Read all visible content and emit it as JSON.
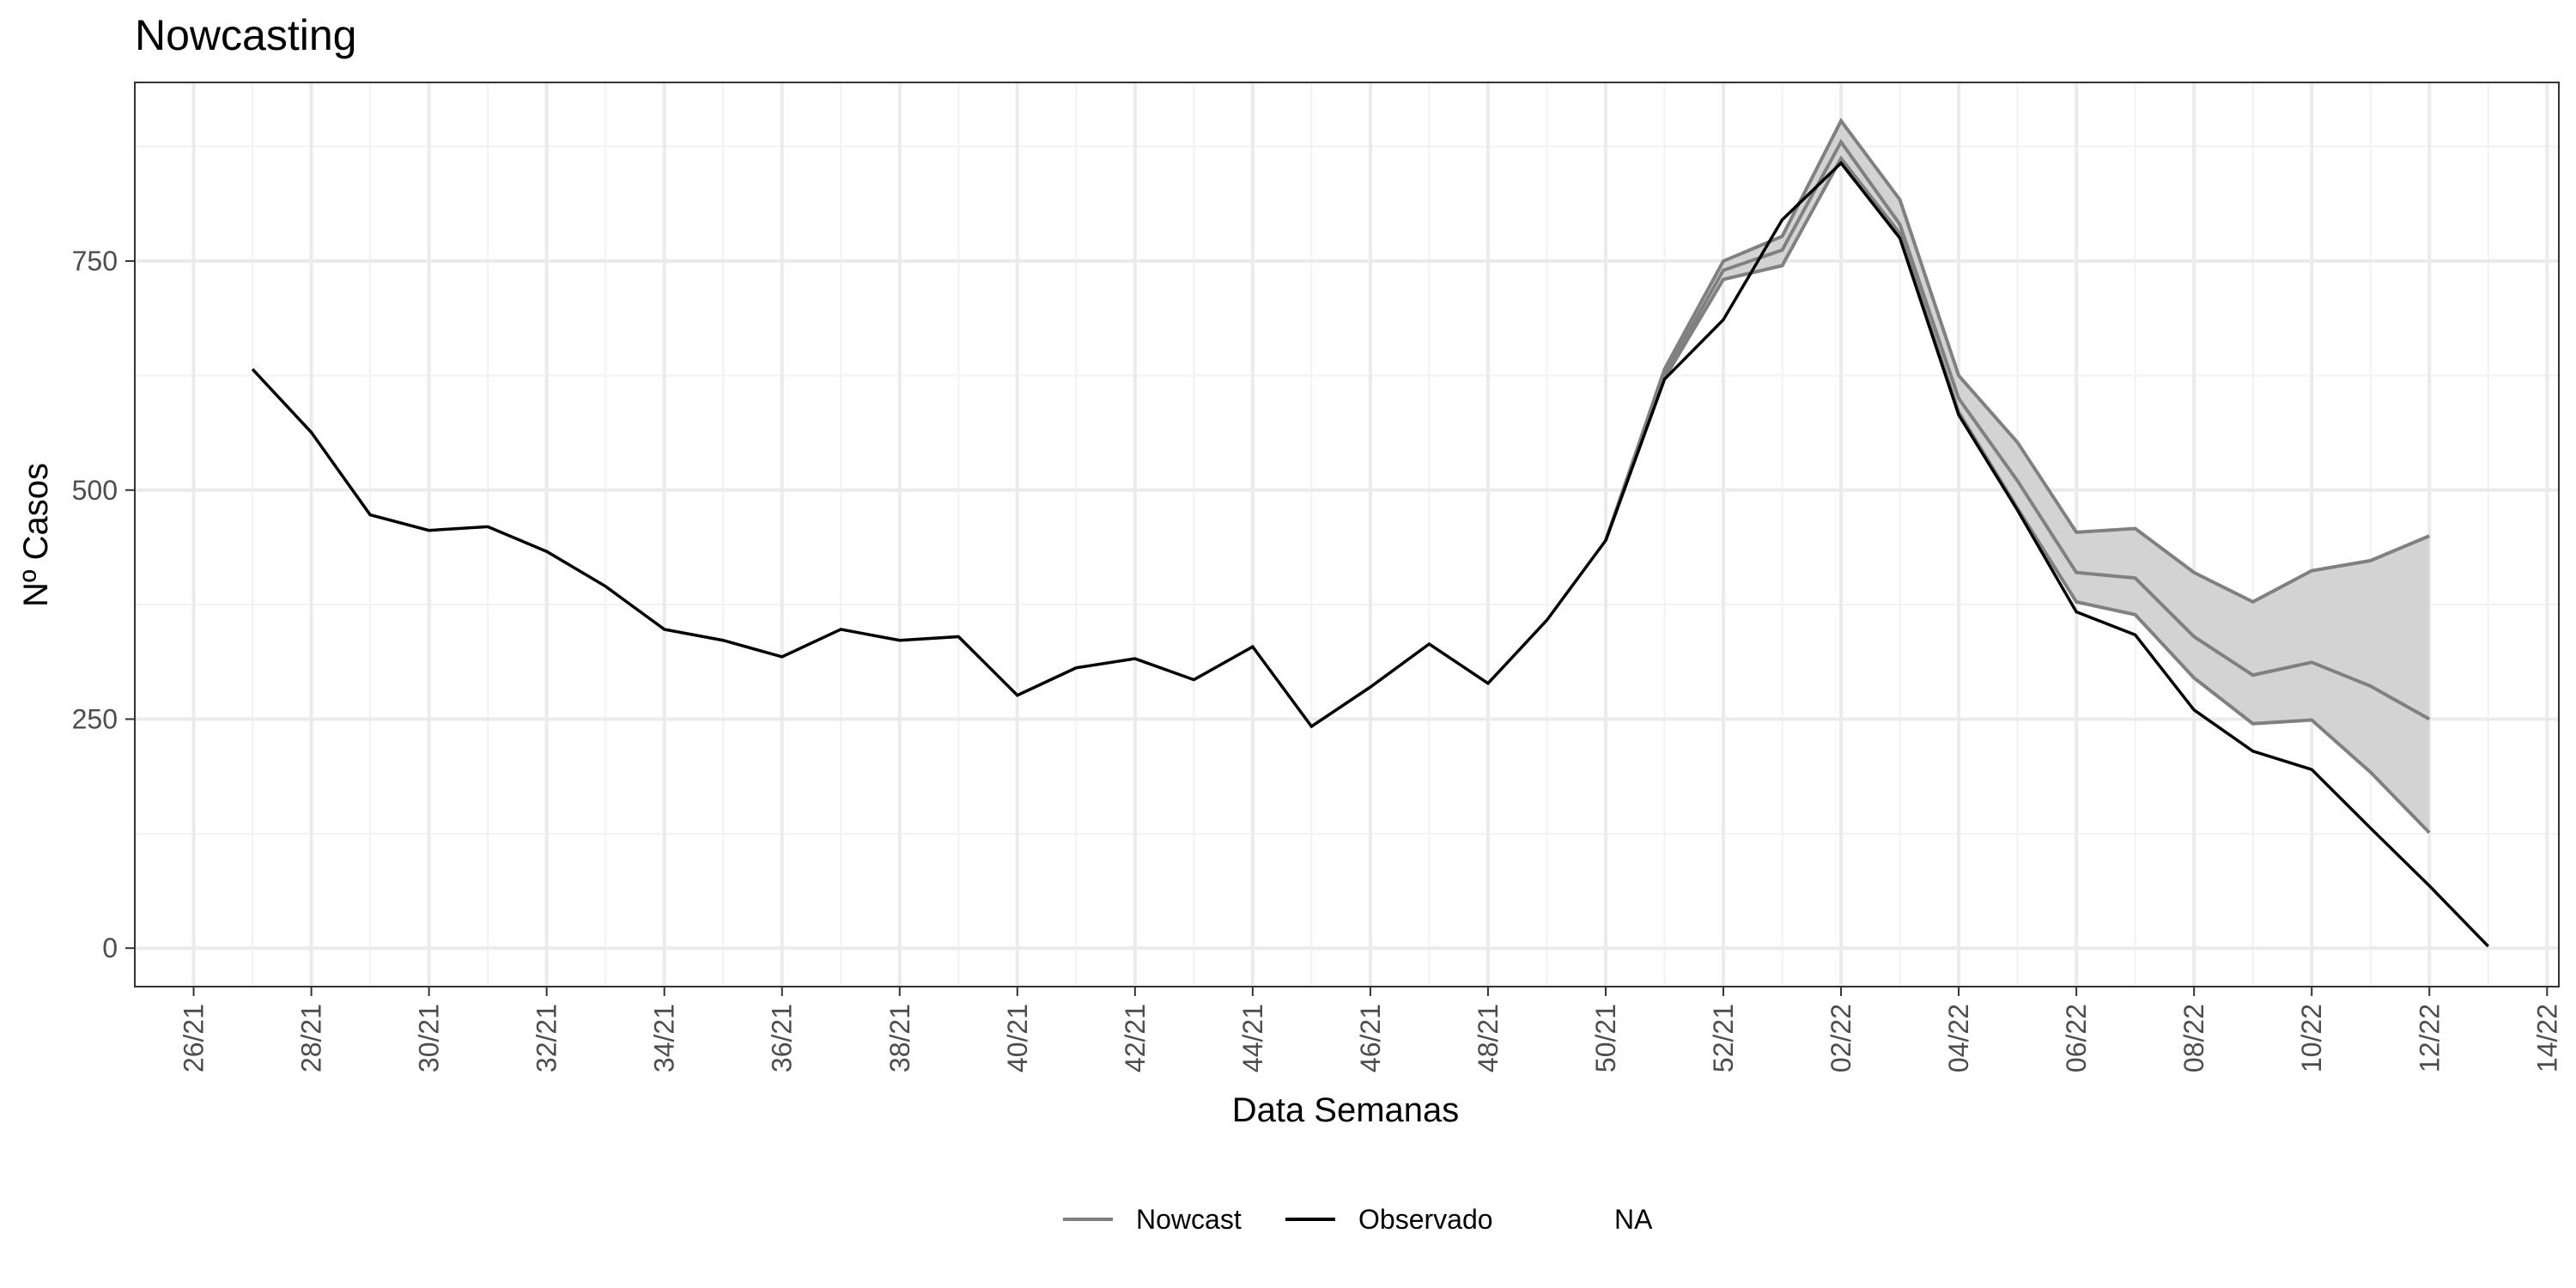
{
  "chart_data": {
    "type": "line",
    "title": "Nowcasting",
    "xlabel": "Data Semanas",
    "ylabel": "Nº Casos",
    "x_axis": {
      "tick_labels": [
        "26/21",
        "28/21",
        "30/21",
        "32/21",
        "34/21",
        "36/21",
        "38/21",
        "40/21",
        "42/21",
        "44/21",
        "46/21",
        "48/21",
        "50/21",
        "52/21",
        "02/22",
        "04/22",
        "06/22",
        "08/22",
        "10/22",
        "12/22",
        "14/22"
      ],
      "range": [
        "26/21",
        "14/22"
      ]
    },
    "y_axis": {
      "ticks": [
        0,
        250,
        500,
        750
      ],
      "ylim": [
        -42,
        945
      ]
    },
    "grid": true,
    "legend": {
      "position": "bottom",
      "entries": [
        {
          "label": "Nowcast",
          "color": "#808080"
        },
        {
          "label": "Observado",
          "color": "#000000"
        },
        {
          "label": "NA",
          "color": ""
        }
      ]
    },
    "series": [
      {
        "name": "Observado",
        "color": "#000000",
        "x": [
          "27/21",
          "28/21",
          "29/21",
          "30/21",
          "31/21",
          "32/21",
          "33/21",
          "34/21",
          "35/21",
          "36/21",
          "37/21",
          "38/21",
          "39/21",
          "40/21",
          "41/21",
          "42/21",
          "43/21",
          "44/21",
          "45/21",
          "46/21",
          "47/21",
          "48/21",
          "49/21",
          "50/21",
          "51/21",
          "52/21",
          "01/22",
          "02/22",
          "03/22",
          "04/22",
          "05/22",
          "06/22",
          "07/22",
          "08/22",
          "09/22",
          "10/22",
          "11/22",
          "12/22",
          "13/22"
        ],
        "values": [
          632,
          563,
          473,
          456,
          460,
          433,
          395,
          348,
          336,
          318,
          348,
          336,
          340,
          276,
          306,
          316,
          293,
          329,
          242,
          285,
          332,
          289,
          358,
          445,
          621,
          686,
          795,
          857,
          775,
          582,
          478,
          367,
          342,
          260,
          215,
          195,
          131,
          68,
          2
        ]
      },
      {
        "name": "Nowcast",
        "color": "#808080",
        "x": [
          "50/21",
          "51/21",
          "52/21",
          "01/22",
          "02/22",
          "03/22",
          "04/22",
          "05/22",
          "06/22",
          "07/22",
          "08/22",
          "09/22",
          "10/22",
          "11/22",
          "12/22"
        ],
        "values": [
          445,
          626,
          740,
          762,
          880,
          790,
          600,
          510,
          410,
          404,
          340,
          298,
          312,
          286,
          250
        ]
      }
    ],
    "interval": {
      "name": "Nowcast",
      "color": "#d3d3d3",
      "x": [
        "50/21",
        "51/21",
        "52/21",
        "01/22",
        "02/22",
        "03/22",
        "04/22",
        "05/22",
        "06/22",
        "07/22",
        "08/22",
        "09/22",
        "10/22",
        "11/22",
        "12/22"
      ],
      "lower": [
        445,
        622,
        730,
        745,
        862,
        780,
        585,
        480,
        378,
        364,
        295,
        245,
        249,
        192,
        126
      ],
      "upper": [
        445,
        632,
        750,
        777,
        903,
        817,
        625,
        552,
        454,
        458,
        410,
        378,
        412,
        423,
        450
      ]
    }
  }
}
